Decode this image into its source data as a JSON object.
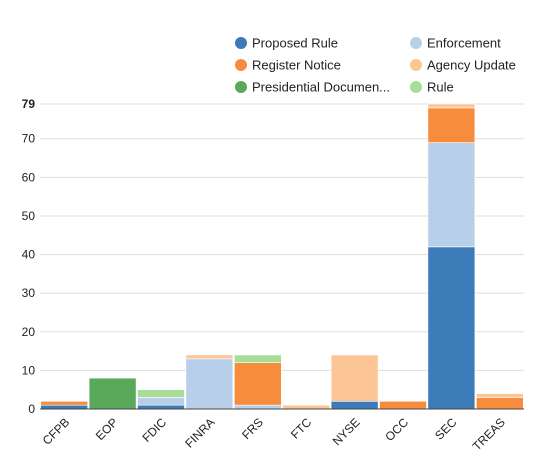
{
  "chart_data": {
    "type": "bar",
    "stacked": true,
    "categories": [
      "CFPB",
      "EOP",
      "FDIC",
      "FINRA",
      "FRS",
      "FTC",
      "NYSE",
      "OCC",
      "SEC",
      "TREAS"
    ],
    "series": [
      {
        "name": "Proposed Rule",
        "color": "#3d7ab8",
        "values": [
          1,
          0,
          1,
          0,
          0,
          0,
          2,
          0,
          42,
          0
        ]
      },
      {
        "name": "Enforcement",
        "color": "#b8cfe9",
        "values": [
          0,
          0,
          2,
          13,
          1,
          0,
          0,
          0,
          27,
          0
        ]
      },
      {
        "name": "Register Notice",
        "color": "#f78c3c",
        "values": [
          1,
          0,
          0,
          0,
          11,
          0,
          0,
          2,
          9,
          3
        ]
      },
      {
        "name": "Agency Update",
        "color": "#fcc596",
        "values": [
          0,
          0,
          0,
          1,
          0,
          1,
          12,
          0,
          1,
          1
        ]
      },
      {
        "name": "Presidential Documen...",
        "color": "#5aa95a",
        "values": [
          0,
          8,
          0,
          0,
          0,
          0,
          0,
          0,
          0,
          0
        ]
      },
      {
        "name": "Rule",
        "color": "#a8dd98",
        "values": [
          0,
          0,
          2,
          0,
          2,
          0,
          0,
          0,
          0,
          0
        ]
      }
    ],
    "ylim": [
      0,
      79
    ],
    "yticks": [
      0,
      10,
      20,
      30,
      40,
      50,
      60,
      70,
      79
    ],
    "grid": true,
    "legend_position": "top-right",
    "legend_columns": 2
  }
}
